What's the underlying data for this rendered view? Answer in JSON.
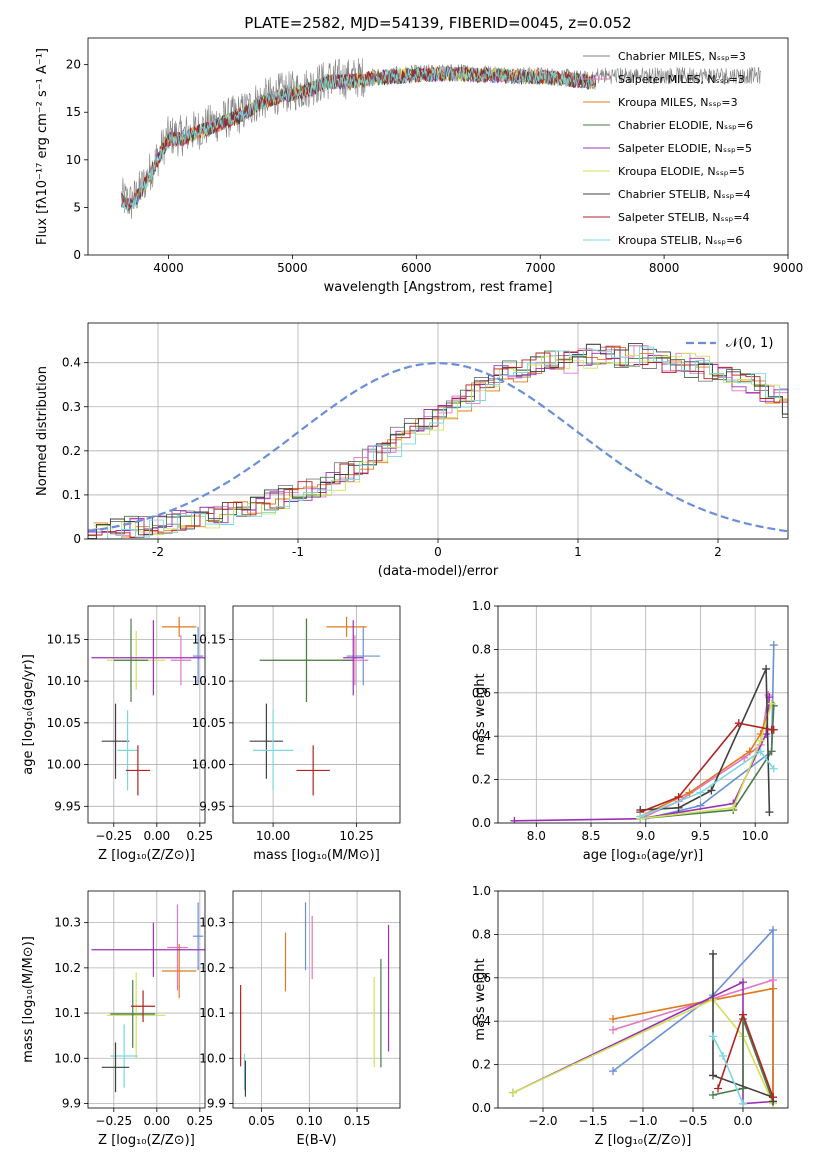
{
  "figure": {
    "title": "PLATE=2582, MJD=54139, FIBERID=0045, z=0.052"
  },
  "chart_data": [
    {
      "id": "spectrum",
      "type": "line",
      "xlabel": "wavelength [Angstrom, rest frame]",
      "ylabel": "Flux [fλ10⁻¹⁷ erg cm⁻² s⁻¹ A⁻¹]",
      "xlim": [
        3350,
        9000
      ],
      "ylim": [
        0,
        22.8
      ],
      "xticks": [
        4000,
        5000,
        6000,
        7000,
        8000,
        9000
      ],
      "yticks": [
        0,
        5,
        10,
        15,
        20
      ],
      "grid": false,
      "legend_position": "right",
      "observed_color": "#808080",
      "anchors_x": [
        3620,
        3700,
        3800,
        3900,
        4000,
        4100,
        4200,
        4300,
        4400,
        4500,
        4600,
        4700,
        4800,
        4900,
        5000,
        5100,
        5200,
        5300,
        5400,
        5500,
        5600,
        5800,
        6000,
        6200,
        6400,
        6500,
        6600,
        6800,
        7000,
        7200,
        7400
      ],
      "anchors_y": [
        6.0,
        5.5,
        7.5,
        10.0,
        12.5,
        12.5,
        13.0,
        13.5,
        14.0,
        14.5,
        15.0,
        16.0,
        16.5,
        17.0,
        17.2,
        17.5,
        18.0,
        18.5,
        18.5,
        18.6,
        18.8,
        19.0,
        19.2,
        19.3,
        19.3,
        19.2,
        19.2,
        19.0,
        19.0,
        18.8,
        18.5
      ],
      "series": [
        {
          "name": "Chabrier MILES, Nₛₛₚ=3",
          "color": "#808080",
          "xmax": 7450
        },
        {
          "name": "Salpeter MILES, Nₛₛₚ=3",
          "color": "#e377c2",
          "xmax": 7450
        },
        {
          "name": "Kroupa MILES, Nₛₛₚ=3",
          "color": "#e07a1f",
          "xmax": 7450
        },
        {
          "name": "Chabrier ELODIE, Nₛₛₚ=6",
          "color": "#4a7a4a",
          "xmax": 7450
        },
        {
          "name": "Salpeter ELODIE, Nₛₛₚ=5",
          "color": "#9b30b8",
          "xmax": 7450
        },
        {
          "name": "Kroupa ELODIE, Nₛₛₚ=5",
          "color": "#cfe35a",
          "xmax": 7450
        },
        {
          "name": "Chabrier STELIB, Nₛₛₚ=4",
          "color": "#404040",
          "xmax": 7450
        },
        {
          "name": "Salpeter STELIB, Nₛₛₚ=4",
          "color": "#b22222",
          "xmax": 7450
        },
        {
          "name": "Kroupa STELIB, Nₛₛₚ=6",
          "color": "#7ad9df",
          "xmax": 7450
        }
      ]
    },
    {
      "id": "residuals",
      "type": "histogram",
      "xlabel": "(data-model)/error",
      "ylabel": "Normed distribution",
      "xlim": [
        -2.5,
        2.5
      ],
      "ylim": [
        0,
        0.49
      ],
      "xticks": [
        -2,
        -1,
        0,
        1,
        2
      ],
      "yticks": [
        0.0,
        0.1,
        0.2,
        0.3,
        0.4
      ],
      "grid": true,
      "legend_position": "top-right",
      "reference_curve": {
        "name": "𝒩(0, 1)",
        "color": "#6a8fd8"
      },
      "bin_edges_from": -2.5,
      "bin_width": 0.1,
      "base_heights": [
        0.015,
        0.02,
        0.025,
        0.028,
        0.03,
        0.035,
        0.04,
        0.045,
        0.05,
        0.055,
        0.06,
        0.07,
        0.08,
        0.09,
        0.1,
        0.11,
        0.12,
        0.135,
        0.15,
        0.17,
        0.19,
        0.21,
        0.23,
        0.25,
        0.27,
        0.29,
        0.31,
        0.33,
        0.35,
        0.37,
        0.38,
        0.39,
        0.4,
        0.41,
        0.4,
        0.41,
        0.42,
        0.42,
        0.41,
        0.42,
        0.41,
        0.4,
        0.4,
        0.39,
        0.38,
        0.37,
        0.36,
        0.35,
        0.33,
        0.32,
        0.3,
        0.28,
        0.26,
        0.24,
        0.22,
        0.2,
        0.18,
        0.16,
        0.14,
        0.13,
        0.12,
        0.1,
        0.09,
        0.08,
        0.07,
        0.06,
        0.055,
        0.05,
        0.045,
        0.04,
        0.035,
        0.03,
        0.028,
        0.025,
        0.02,
        0.018,
        0.015,
        0.012,
        0.01,
        0.008
      ]
    },
    {
      "id": "age-vs-z",
      "type": "errorbar",
      "xlabel": "Z [log₁₀(Z/Z⊙)]",
      "ylabel": "age  [log₁₀(age/yr)]",
      "xlim": [
        -0.4,
        0.28
      ],
      "ylim": [
        9.93,
        10.19
      ],
      "xticks": [
        -0.25,
        0.0,
        0.25
      ],
      "xticklabels": [
        "−0.25",
        "0.00",
        "0.25"
      ],
      "yticks": [
        9.95,
        10.0,
        10.05,
        10.1,
        10.15
      ],
      "yticklabels": [
        "9.95",
        "10.00",
        "10.05",
        "10.10",
        "10.15"
      ],
      "grid": true,
      "points": [
        {
          "x": 0.24,
          "y": 10.13,
          "xerr": 0.03,
          "yerr": 0.035,
          "color": "#6a8fd8"
        },
        {
          "x": 0.14,
          "y": 10.125,
          "xerr": 0.06,
          "yerr": 0.03,
          "color": "#e377c2"
        },
        {
          "x": 0.13,
          "y": 10.165,
          "xerr": 0.1,
          "yerr": 0.012,
          "color": "#e07a1f"
        },
        {
          "x": -0.12,
          "y": 10.125,
          "xerr": 0.17,
          "yerr": 0.035,
          "color": "#cfe35a"
        },
        {
          "x": -0.15,
          "y": 10.125,
          "xerr": 0.1,
          "yerr": 0.05,
          "color": "#4a7a4a"
        },
        {
          "x": -0.02,
          "y": 10.128,
          "xerr": 0.36,
          "yerr": 0.045,
          "color": "#9b30b8"
        },
        {
          "x": -0.24,
          "y": 10.028,
          "xerr": 0.08,
          "yerr": 0.045,
          "color": "#404040"
        },
        {
          "x": -0.17,
          "y": 10.017,
          "xerr": 0.06,
          "yerr": 0.048,
          "color": "#7ad9df"
        },
        {
          "x": -0.11,
          "y": 9.993,
          "xerr": 0.07,
          "yerr": 0.03,
          "color": "#b22222"
        }
      ]
    },
    {
      "id": "age-vs-mass",
      "type": "errorbar",
      "xlabel": "mass [log₁₀(M/M⊙)]",
      "ylabel": "",
      "xlim": [
        9.88,
        10.38
      ],
      "ylim": [
        9.93,
        10.19
      ],
      "xticks": [
        10.0,
        10.25
      ],
      "xticklabels": [
        "10.00",
        "10.25"
      ],
      "yticks": [
        9.95,
        10.0,
        10.05,
        10.1,
        10.15
      ],
      "yticklabels": [
        "9.95",
        "10.00",
        "10.05",
        "10.10",
        "10.15"
      ],
      "grid": true,
      "points": [
        {
          "x": 10.27,
          "y": 10.13,
          "xerr": 0.05,
          "yerr": 0.035,
          "color": "#6a8fd8"
        },
        {
          "x": 10.245,
          "y": 10.125,
          "xerr": 0.04,
          "yerr": 0.03,
          "color": "#e377c2"
        },
        {
          "x": 10.22,
          "y": 10.165,
          "xerr": 0.06,
          "yerr": 0.012,
          "color": "#e07a1f"
        },
        {
          "x": 10.1,
          "y": 10.125,
          "xerr": 0.1,
          "yerr": 0.05,
          "color": "#cfe35a"
        },
        {
          "x": 10.1,
          "y": 10.125,
          "xerr": 0.14,
          "yerr": 0.05,
          "color": "#4a7a4a"
        },
        {
          "x": 10.24,
          "y": 10.128,
          "xerr": 0.03,
          "yerr": 0.045,
          "color": "#9b30b8"
        },
        {
          "x": 9.98,
          "y": 10.028,
          "xerr": 0.05,
          "yerr": 0.045,
          "color": "#404040"
        },
        {
          "x": 10.0,
          "y": 10.017,
          "xerr": 0.06,
          "yerr": 0.048,
          "color": "#7ad9df"
        },
        {
          "x": 10.12,
          "y": 9.993,
          "xerr": 0.05,
          "yerr": 0.03,
          "color": "#b22222"
        }
      ]
    },
    {
      "id": "weight-vs-age",
      "type": "line",
      "xlabel": "age  [log₁₀(age/yr)]",
      "ylabel": "mass weight",
      "xlim": [
        7.65,
        10.3
      ],
      "ylim": [
        0,
        1.0
      ],
      "xticks": [
        8.0,
        8.5,
        9.0,
        9.5,
        10.0
      ],
      "xticklabels": [
        "8.0",
        "8.5",
        "9.0",
        "9.5",
        "10.0"
      ],
      "yticks": [
        0.0,
        0.2,
        0.4,
        0.6,
        0.8,
        1.0
      ],
      "yticklabels": [
        "0.0",
        "0.2",
        "0.4",
        "0.6",
        "0.8",
        "1.0"
      ],
      "grid": true,
      "series": [
        {
          "color": "#6a8fd8",
          "x": [
            9.0,
            9.5,
            10.15,
            10.17
          ],
          "y": [
            0.02,
            0.08,
            0.33,
            0.82
          ]
        },
        {
          "color": "#e377c2",
          "x": [
            8.95,
            9.3,
            9.9,
            10.05,
            10.12
          ],
          "y": [
            0.02,
            0.1,
            0.3,
            0.36,
            0.59
          ]
        },
        {
          "color": "#e07a1f",
          "x": [
            8.95,
            9.4,
            9.95,
            10.05,
            10.15
          ],
          "y": [
            0.03,
            0.14,
            0.33,
            0.41,
            0.55
          ]
        },
        {
          "color": "#4a7a4a",
          "x": [
            8.95,
            9.8,
            10.15,
            10.17
          ],
          "y": [
            0.02,
            0.06,
            0.33,
            0.54
          ]
        },
        {
          "color": "#9b30b8",
          "x": [
            7.8,
            8.95,
            9.8,
            10.1,
            10.13
          ],
          "y": [
            0.01,
            0.02,
            0.09,
            0.41,
            0.58
          ]
        },
        {
          "color": "#cfe35a",
          "x": [
            8.95,
            9.8,
            10.05,
            10.15
          ],
          "y": [
            0.02,
            0.07,
            0.38,
            0.55
          ]
        },
        {
          "color": "#404040",
          "x": [
            8.95,
            9.3,
            9.6,
            10.1,
            10.13
          ],
          "y": [
            0.06,
            0.07,
            0.15,
            0.71,
            0.05
          ]
        },
        {
          "color": "#b22222",
          "x": [
            8.95,
            9.3,
            9.85,
            10.15,
            10.17
          ],
          "y": [
            0.05,
            0.12,
            0.46,
            0.43,
            0.43
          ]
        },
        {
          "color": "#7ad9df",
          "x": [
            8.95,
            9.5,
            10.05,
            10.17
          ],
          "y": [
            0.03,
            0.14,
            0.33,
            0.25
          ]
        }
      ]
    },
    {
      "id": "mass-vs-z",
      "type": "errorbar",
      "xlabel": "Z [log₁₀(Z/Z⊙)]",
      "ylabel": "mass [log₁₀(M/M⊙)]",
      "xlim": [
        -0.4,
        0.28
      ],
      "ylim": [
        9.89,
        10.37
      ],
      "xticks": [
        -0.25,
        0.0,
        0.25
      ],
      "xticklabels": [
        "−0.25",
        "0.00",
        "0.25"
      ],
      "yticks": [
        9.9,
        10.0,
        10.1,
        10.2,
        10.3
      ],
      "yticklabels": [
        "9.9",
        "10.0",
        "10.1",
        "10.2",
        "10.3"
      ],
      "grid": true,
      "points": [
        {
          "x": 0.24,
          "y": 10.27,
          "xerr": 0.03,
          "yerr": 0.075,
          "color": "#6a8fd8"
        },
        {
          "x": 0.12,
          "y": 10.245,
          "xerr": 0.06,
          "yerr": 0.095,
          "color": "#e377c2"
        },
        {
          "x": 0.13,
          "y": 10.193,
          "xerr": 0.1,
          "yerr": 0.06,
          "color": "#e07a1f"
        },
        {
          "x": -0.02,
          "y": 10.24,
          "xerr": 0.36,
          "yerr": 0.06,
          "color": "#9b30b8"
        },
        {
          "x": -0.12,
          "y": 10.095,
          "xerr": 0.17,
          "yerr": 0.095,
          "color": "#cfe35a"
        },
        {
          "x": -0.14,
          "y": 10.098,
          "xerr": 0.13,
          "yerr": 0.075,
          "color": "#4a7a4a"
        },
        {
          "x": -0.08,
          "y": 10.115,
          "xerr": 0.07,
          "yerr": 0.035,
          "color": "#b22222"
        },
        {
          "x": -0.19,
          "y": 10.005,
          "xerr": 0.08,
          "yerr": 0.07,
          "color": "#7ad9df"
        },
        {
          "x": -0.24,
          "y": 9.98,
          "xerr": 0.08,
          "yerr": 0.055,
          "color": "#404040"
        }
      ]
    },
    {
      "id": "mass-vs-ebv",
      "type": "errorbar",
      "xlabel": "E(B-V)",
      "ylabel": "",
      "xlim": [
        0.02,
        0.195
      ],
      "ylim": [
        9.89,
        10.37
      ],
      "xticks": [
        0.05,
        0.1,
        0.15
      ],
      "xticklabels": [
        "0.05",
        "0.10",
        "0.15"
      ],
      "yticks": [
        9.9,
        10.0,
        10.1,
        10.2,
        10.3
      ],
      "yticklabels": [
        "9.9",
        "10.0",
        "10.1",
        "10.2",
        "10.3"
      ],
      "grid": true,
      "points": [
        {
          "x": 0.096,
          "y": 10.27,
          "xerr": 0,
          "yerr": 0.075,
          "color": "#6a8fd8"
        },
        {
          "x": 0.103,
          "y": 10.245,
          "xerr": 0,
          "yerr": 0.07,
          "color": "#e377c2"
        },
        {
          "x": 0.075,
          "y": 10.213,
          "xerr": 0,
          "yerr": 0.065,
          "color": "#e07a1f"
        },
        {
          "x": 0.183,
          "y": 10.155,
          "xerr": 0,
          "yerr": 0.14,
          "color": "#9b30b8"
        },
        {
          "x": 0.175,
          "y": 10.1,
          "xerr": 0,
          "yerr": 0.12,
          "color": "#4a7a4a"
        },
        {
          "x": 0.168,
          "y": 10.08,
          "xerr": 0,
          "yerr": 0.1,
          "color": "#cfe35a"
        },
        {
          "x": 0.028,
          "y": 10.072,
          "xerr": 0,
          "yerr": 0.09,
          "color": "#b22222"
        },
        {
          "x": 0.032,
          "y": 9.97,
          "xerr": 0,
          "yerr": 0.04,
          "color": "#7ad9df"
        },
        {
          "x": 0.033,
          "y": 9.955,
          "xerr": 0,
          "yerr": 0.04,
          "color": "#404040"
        }
      ]
    },
    {
      "id": "weight-vs-z",
      "type": "line",
      "xlabel": "Z [log₁₀(Z/Z⊙)]",
      "ylabel": "mass weight",
      "xlim": [
        -2.45,
        0.45
      ],
      "ylim": [
        0,
        1.0
      ],
      "xticks": [
        -2.0,
        -1.5,
        -1.0,
        -0.5,
        0.0
      ],
      "xticklabels": [
        "−2.0",
        "−1.5",
        "−1.0",
        "−0.5",
        "0.0"
      ],
      "yticks": [
        0.0,
        0.2,
        0.4,
        0.6,
        0.8,
        1.0
      ],
      "yticklabels": [
        "0.0",
        "0.2",
        "0.4",
        "0.6",
        "0.8",
        "1.0"
      ],
      "grid": true,
      "series": [
        {
          "color": "#6a8fd8",
          "x": [
            -1.3,
            -0.3,
            0.3,
            0.3
          ],
          "y": [
            0.17,
            0.52,
            0.82,
            0.03
          ]
        },
        {
          "color": "#e377c2",
          "x": [
            -1.3,
            0.3,
            0.3
          ],
          "y": [
            0.36,
            0.59,
            0.03
          ]
        },
        {
          "color": "#e07a1f",
          "x": [
            -1.3,
            0.3,
            0.3
          ],
          "y": [
            0.41,
            0.55,
            0.05
          ]
        },
        {
          "color": "#9b30b8",
          "x": [
            -2.3,
            0.0,
            0.0,
            0.3
          ],
          "y": [
            0.07,
            0.58,
            0.02,
            0.03
          ]
        },
        {
          "color": "#cfe35a",
          "x": [
            -2.3,
            -0.3,
            0.0,
            0.3
          ],
          "y": [
            0.07,
            0.5,
            0.33,
            0.02
          ]
        },
        {
          "color": "#4a7a4a",
          "x": [
            -0.3,
            0.0,
            0.0,
            0.3
          ],
          "y": [
            0.06,
            0.09,
            0.41,
            0.03
          ]
        },
        {
          "color": "#404040",
          "x": [
            -0.3,
            -0.3,
            0.3,
            0.3
          ],
          "y": [
            0.71,
            0.15,
            0.05,
            0.03
          ]
        },
        {
          "color": "#b22222",
          "x": [
            -0.25,
            0.0,
            0.3
          ],
          "y": [
            0.09,
            0.43,
            0.05
          ]
        },
        {
          "color": "#7ad9df",
          "x": [
            -0.3,
            -0.2,
            0.0
          ],
          "y": [
            0.33,
            0.24,
            0.02
          ]
        }
      ]
    }
  ]
}
